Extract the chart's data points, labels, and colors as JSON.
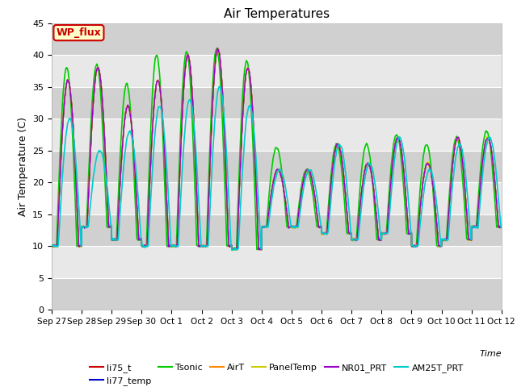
{
  "title": "Air Temperatures",
  "ylabel": "Air Temperature (C)",
  "xlabel": "Time",
  "ylim": [
    0,
    45
  ],
  "yticks": [
    0,
    5,
    10,
    15,
    20,
    25,
    30,
    35,
    40,
    45
  ],
  "series_order": [
    "li75_t",
    "li77_temp",
    "Tsonic",
    "AirT",
    "PanelTemp",
    "NR01_PRT",
    "AM25T_PRT"
  ],
  "series": {
    "li75_t": {
      "color": "#cc0000",
      "lw": 1.0,
      "zorder": 4
    },
    "li77_temp": {
      "color": "#0000cc",
      "lw": 1.0,
      "zorder": 4
    },
    "Tsonic": {
      "color": "#00cc00",
      "lw": 1.2,
      "zorder": 3
    },
    "AirT": {
      "color": "#ff8800",
      "lw": 1.0,
      "zorder": 4
    },
    "PanelTemp": {
      "color": "#cccc00",
      "lw": 1.0,
      "zorder": 4
    },
    "NR01_PRT": {
      "color": "#9900cc",
      "lw": 1.0,
      "zorder": 4
    },
    "AM25T_PRT": {
      "color": "#00cccc",
      "lw": 1.2,
      "zorder": 5
    }
  },
  "annotation": {
    "text": "WP_flux",
    "facecolor": "#ffffcc",
    "edgecolor": "#cc0000",
    "textcolor": "#cc0000"
  },
  "bg_light": "#e8e8e8",
  "bg_dark": "#d0d0d0",
  "grid_color": "#ffffff",
  "tick_labels": [
    "Sep 27",
    "Sep 28",
    "Sep 29",
    "Sep 30",
    "Oct 1",
    "Oct 2",
    "Oct 3",
    "Oct 4",
    "Oct 5",
    "Oct 6",
    "Oct 7",
    "Oct 8",
    "Oct 9",
    "Oct 10",
    "Oct 11",
    "Oct 12"
  ],
  "peak_temps": [
    36,
    38,
    32,
    36,
    40,
    41,
    38,
    22,
    22,
    26,
    23,
    27,
    23,
    27,
    27
  ],
  "min_temps": [
    10,
    13,
    11,
    10,
    10,
    10,
    9.5,
    13,
    13,
    12,
    11,
    12,
    10,
    11,
    13
  ],
  "tsonic_peaks": [
    38,
    38.5,
    35.5,
    40,
    40.5,
    41,
    39,
    25.5,
    22,
    26,
    26,
    27.5,
    26,
    27,
    28
  ],
  "am25t_peaks": [
    30,
    25,
    28,
    32,
    33,
    35,
    32,
    22,
    22,
    26,
    23,
    27,
    22,
    26,
    27
  ],
  "n_days": 15,
  "ppd": 288
}
